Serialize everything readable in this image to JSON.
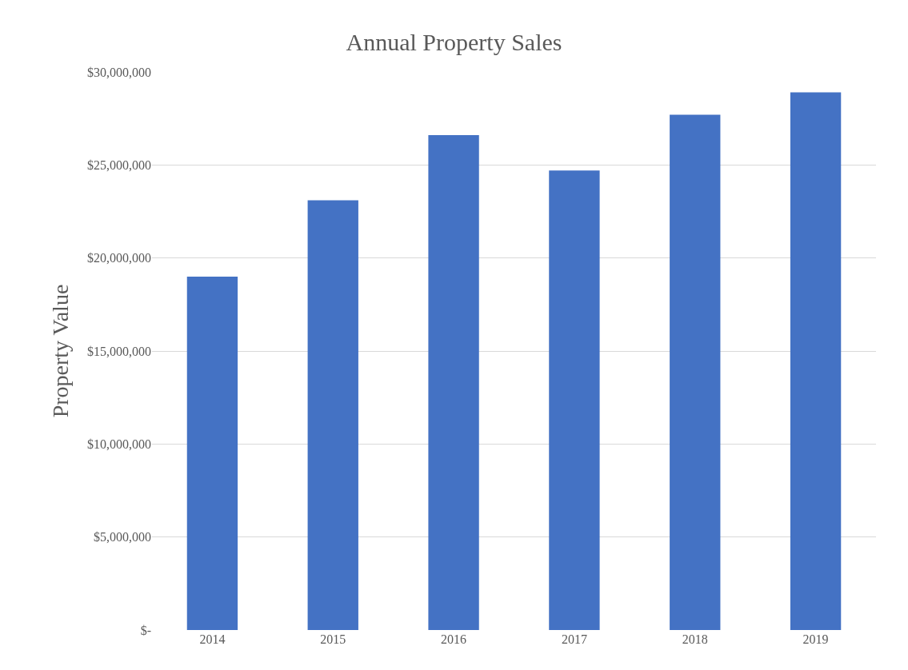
{
  "chart_data": {
    "type": "bar",
    "title": "Annual Property Sales",
    "ylabel": "Property Value",
    "categories": [
      "2014",
      "2015",
      "2016",
      "2017",
      "2018",
      "2019"
    ],
    "values": [
      19000000,
      23100000,
      26600000,
      24700000,
      27700000,
      28900000
    ],
    "color": "#4472c4",
    "ylim": [
      0,
      30000000
    ],
    "yticks": [
      {
        "value": 0,
        "label": "$-"
      },
      {
        "value": 5000000,
        "label": "$5,000,000"
      },
      {
        "value": 10000000,
        "label": "$10,000,000"
      },
      {
        "value": 15000000,
        "label": "$15,000,000"
      },
      {
        "value": 20000000,
        "label": "$20,000,000"
      },
      {
        "value": 25000000,
        "label": "$25,000,000"
      },
      {
        "value": 30000000,
        "label": "$30,000,000"
      }
    ],
    "grid": "y"
  }
}
